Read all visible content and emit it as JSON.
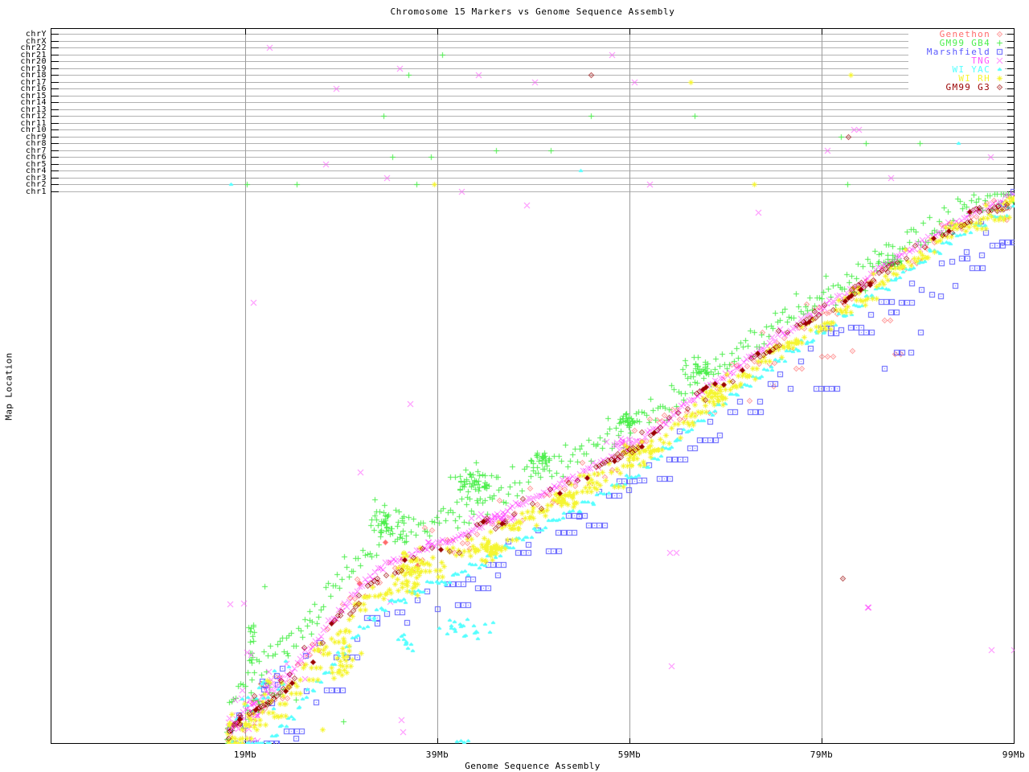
{
  "window": {
    "title": "Chromosome 15 Markers vs Genome Sequence Assembly"
  },
  "legend": {
    "items": [
      {
        "label": "Genethon",
        "color": "#ff6b6b",
        "marker": "diamond"
      },
      {
        "label": "GM99 GB4",
        "color": "#4cee4c",
        "marker": "plus"
      },
      {
        "label": "Marshfield",
        "color": "#5a5aff",
        "marker": "boxdot"
      },
      {
        "label": "TNG",
        "color": "#ff55ff",
        "marker": "cross"
      },
      {
        "label": "WI YAC",
        "color": "#55ffff",
        "marker": "triangle"
      },
      {
        "label": "WI RH",
        "color": "#f5f532",
        "marker": "star"
      },
      {
        "label": "GM99 G3",
        "color": "#990000",
        "marker": "diamond"
      }
    ]
  },
  "chart_data": {
    "type": "scatter",
    "title": "Chromosome 15 Markers vs Genome Sequence Assembly",
    "xlabel": "Genome Sequence Assembly",
    "ylabel": "Map Location",
    "x_range_mb": [
      -1.25,
      99.1
    ],
    "x_ticks": [
      {
        "mb": 19,
        "label": "19Mb"
      },
      {
        "mb": 39,
        "label": "39Mb"
      },
      {
        "mb": 59,
        "label": "59Mb"
      },
      {
        "mb": 79,
        "label": "79Mb"
      },
      {
        "mb": 99,
        "label": "99Mb"
      }
    ],
    "grid_color": "#b2b2b2",
    "vgrid_color": "#9c9c9c",
    "chromosome_rows": [
      "chrY",
      "chrX",
      "chr22",
      "chr21",
      "chr20",
      "chr19",
      "chr18",
      "chr17",
      "chr16",
      "chr15",
      "chr14",
      "chr13",
      "chr12",
      "chr11",
      "chr10",
      "chr9",
      "chr8",
      "chr7",
      "chr6",
      "chr5",
      "chr4",
      "chr3",
      "chr2",
      "chr1"
    ],
    "centerline": [
      [
        17.3,
        1.7
      ],
      [
        19.4,
        5.3
      ],
      [
        21.5,
        7.1
      ],
      [
        23.6,
        9.8
      ],
      [
        25.7,
        13.5
      ],
      [
        27.8,
        16.9
      ],
      [
        29.9,
        20.2
      ],
      [
        32,
        23.3
      ],
      [
        34.1,
        25.3
      ],
      [
        36.2,
        26.4
      ],
      [
        38.2,
        27.8
      ],
      [
        40.3,
        28.4
      ],
      [
        42.4,
        29.8
      ],
      [
        44.5,
        31.1
      ],
      [
        47,
        33.1
      ],
      [
        49.5,
        34.8
      ],
      [
        52.1,
        36.5
      ],
      [
        54.6,
        38.2
      ],
      [
        57.1,
        40.1
      ],
      [
        59.6,
        42.1
      ],
      [
        62.1,
        44.4
      ],
      [
        64.6,
        47.2
      ],
      [
        67.1,
        49.8
      ],
      [
        69.6,
        52
      ],
      [
        72.1,
        54.7
      ],
      [
        74.7,
        57.3
      ],
      [
        77.2,
        59.2
      ],
      [
        79.7,
        61.5
      ],
      [
        82.2,
        63.5
      ],
      [
        84.7,
        66
      ],
      [
        87.2,
        68.2
      ],
      [
        89.7,
        70.2
      ],
      [
        92.2,
        72.5
      ],
      [
        94.7,
        74.2
      ],
      [
        97.2,
        75.8
      ],
      [
        99.1,
        76.7
      ]
    ],
    "series": [
      {
        "name": "genethon",
        "label": "Genethon",
        "color": "#ff6b6b",
        "marker": "diamond",
        "seed": 101,
        "band": {
          "range": [
            17.4,
            99.0
          ],
          "step": 0.78,
          "off": [
            -0.5,
            -0.4
          ],
          "jitter": 2.3,
          "style": "pairs"
        },
        "blob_n": 12,
        "clusters": [],
        "outliers": [
          [
            79.0,
            54.2
          ],
          [
            79.6,
            54.2
          ],
          [
            80.2,
            54.2
          ],
          [
            85.5,
            59.2
          ],
          [
            86.1,
            59.2
          ],
          [
            82.2,
            54.9
          ],
          [
            86.6,
            54.5
          ],
          [
            87.2,
            54.5
          ],
          [
            76.3,
            52.5
          ],
          [
            76.9,
            52.5
          ],
          [
            74.0,
            50.0
          ],
          [
            71.5,
            48.0
          ]
        ],
        "bold": [
          [
            30.9,
            22.5
          ],
          [
            33.6,
            28.2
          ],
          [
            68.8,
            50.2
          ],
          [
            36.9,
            25.0
          ]
        ],
        "chrom_outliers": []
      },
      {
        "name": "gm99-gb4",
        "label": "GM99 GB4",
        "color": "#4cee4c",
        "marker": "plus",
        "seed": 202,
        "band": {
          "range": [
            17.3,
            99.0
          ],
          "step": 0.24,
          "off": [
            4.6,
            0.7
          ],
          "jitter": 1.9,
          "style": "plain"
        },
        "blob_n": 30,
        "clusters": [
          [
            42.8,
            36.5,
            2.0,
            1.9,
            50
          ],
          [
            34.1,
            31.0,
            1.8,
            2.2,
            40
          ],
          [
            50.0,
            39.9,
            1.3,
            1.0,
            25
          ],
          [
            58.8,
            45.5,
            1.3,
            1.2,
            25
          ],
          [
            66.3,
            52.8,
            1.5,
            1.2,
            30
          ],
          [
            86.4,
            67.4,
            1.2,
            1.0,
            20
          ],
          [
            19.7,
            13.5,
            0.5,
            3.2,
            14
          ]
        ],
        "outliers": [
          [
            25.7,
            18.5
          ],
          [
            25.9,
            15.4
          ],
          [
            24.3,
            6.2
          ],
          [
            29.2,
            3.2
          ],
          [
            21.0,
            22.0
          ]
        ],
        "bold": [],
        "chrom_outliers": [
          [
            "chr21",
            39.5
          ],
          [
            "chr18",
            36.0
          ],
          [
            "chr12",
            33.4
          ],
          [
            "chr12",
            55.0
          ],
          [
            "chr12",
            65.8
          ],
          [
            "chr7",
            45.1
          ],
          [
            "chr7",
            50.8
          ],
          [
            "chr6",
            34.3
          ],
          [
            "chr6",
            38.3
          ],
          [
            "chr2",
            19.2
          ],
          [
            "chr2",
            24.4
          ],
          [
            "chr2",
            36.8
          ],
          [
            "chr2",
            81.7
          ],
          [
            "chr8",
            83.6
          ],
          [
            "chr8",
            89.2
          ],
          [
            "chr9",
            81.0
          ]
        ]
      },
      {
        "name": "marshfield",
        "label": "Marshfield",
        "color": "#5a5aff",
        "marker": "boxdot",
        "seed": 303,
        "band": {
          "range": [
            18.0,
            98.6
          ],
          "step": 1.05,
          "off": [
            -8.2,
            -4.6
          ],
          "jitter": 2.2,
          "style": "hrun"
        },
        "blob_n": 10,
        "clusters": [],
        "outliers": [
          [
            26.7,
            14.2
          ],
          [
            25.3,
            12.4
          ],
          [
            78.4,
            49.7
          ],
          [
            78.9,
            49.7
          ],
          [
            79.5,
            49.7
          ],
          [
            80.0,
            49.7
          ],
          [
            80.6,
            49.7
          ],
          [
            86.8,
            54.7
          ],
          [
            87.4,
            54.7
          ],
          [
            88.3,
            54.7
          ],
          [
            85.5,
            52.5
          ],
          [
            91.4,
            62.6
          ],
          [
            94.1,
            68.8
          ],
          [
            96.1,
            71.5
          ],
          [
            92.9,
            64.0
          ],
          [
            95.6,
            73.0
          ],
          [
            97.9,
            75.5
          ],
          [
            89.3,
            57.5
          ]
        ],
        "bold": [],
        "chrom_outliers": [
          [
            "chr1",
            98.9
          ]
        ]
      },
      {
        "name": "tng",
        "label": "TNG",
        "color": "#ff55ff",
        "marker": "cross",
        "seed": 404,
        "band": {
          "range": [
            17.4,
            99.0
          ],
          "step": 0.27,
          "off": [
            0,
            0
          ],
          "jitter": 0.45,
          "style": "plain"
        },
        "blob_n": 24,
        "clusters": [
          [
            20.0,
            3.0,
            0.7,
            2.2,
            12
          ],
          [
            44.8,
            31.5,
            1.8,
            0.5,
            22
          ],
          [
            58.5,
            42.3,
            1.5,
            0.4,
            14
          ]
        ],
        "outliers": [
          [
            19.8,
            61.7
          ],
          [
            48.3,
            75.3
          ],
          [
            72.4,
            74.3
          ],
          [
            63.2,
            26.7
          ],
          [
            63.9,
            26.7
          ],
          [
            63.4,
            10.9
          ],
          [
            83.8,
            19.1
          ],
          [
            96.7,
            13.1
          ],
          [
            99.0,
            13.1
          ],
          [
            17.4,
            19.6
          ],
          [
            18.8,
            19.7
          ],
          [
            19.2,
            12.8
          ],
          [
            19.6,
            12.5
          ],
          [
            24.9,
            11.7
          ],
          [
            25.2,
            9.1
          ],
          [
            34.1,
            19.9
          ],
          [
            35.2,
            3.4
          ],
          [
            35.4,
            1.7
          ],
          [
            20.3,
            0.4
          ],
          [
            36.2,
            47.5
          ],
          [
            31.0,
            38.0
          ]
        ],
        "bold": [
          [
            83.8,
            19.1
          ],
          [
            38.0,
            28.2
          ]
        ],
        "chrom_outliers": [
          [
            "chr22",
            21.5
          ],
          [
            "chr21",
            57.2
          ],
          [
            "chr19",
            35.1
          ],
          [
            "chr18",
            43.3
          ],
          [
            "chr17",
            49.1
          ],
          [
            "chr17",
            59.5
          ],
          [
            "chr16",
            28.5
          ],
          [
            "chr10",
            82.4
          ],
          [
            "chr10",
            82.9
          ],
          [
            "chr7",
            79.6
          ],
          [
            "chr6",
            96.6
          ],
          [
            "chr5",
            27.4
          ],
          [
            "chr3",
            33.7
          ],
          [
            "chr3",
            86.2
          ],
          [
            "chr2",
            61.1
          ],
          [
            "chr1",
            41.5
          ]
        ]
      },
      {
        "name": "wi-yac",
        "label": "WI YAC",
        "color": "#55ffff",
        "marker": "triangle",
        "seed": 505,
        "band": {
          "range": [
            17.5,
            99.0
          ],
          "step": 0.3,
          "off": [
            -6.8,
            -1.9
          ],
          "jitter": 0.7,
          "style": "stair"
        },
        "blob_n": 20,
        "clusters": [
          [
            42.0,
            16.0,
            2.3,
            1.7,
            22
          ],
          [
            35.8,
            14.0,
            1.1,
            0.9,
            10
          ]
        ],
        "outliers": [
          [
            41.0,
            0.3
          ],
          [
            41.4,
            0.5
          ],
          [
            41.8,
            0.2
          ],
          [
            42.2,
            0.4
          ]
        ],
        "bold": [],
        "chrom_outliers": [
          [
            "chr2",
            17.5
          ],
          [
            "chr4",
            53.9
          ],
          [
            "chr8",
            93.2
          ]
        ]
      },
      {
        "name": "wi-rh",
        "label": "WI RH",
        "color": "#f5f532",
        "marker": "star",
        "seed": 606,
        "band": {
          "range": [
            17.5,
            99.0
          ],
          "step": 0.3,
          "off": [
            -2.9,
            -1.3
          ],
          "jitter": 1.5,
          "style": "hshort"
        },
        "blob_n": 22,
        "clusters": [
          [
            36.3,
            23.6,
            1.2,
            2.6,
            40
          ],
          [
            44.5,
            27.0,
            1.4,
            1.4,
            25
          ],
          [
            52.5,
            34.3,
            1.4,
            1.2,
            22
          ],
          [
            60.0,
            41.0,
            1.4,
            1.2,
            22
          ],
          [
            68.0,
            48.9,
            1.4,
            1.2,
            22
          ],
          [
            29.5,
            11.5,
            1.2,
            2.2,
            25
          ]
        ],
        "outliers": [
          [
            27.0,
            2.0
          ]
        ],
        "bold": [],
        "chrom_outliers": [
          [
            "chr17",
            65.4
          ],
          [
            "chr18",
            82.0
          ],
          [
            "chr2",
            72.0
          ],
          [
            "chr2",
            38.7
          ]
        ]
      },
      {
        "name": "gm99-g3",
        "label": "GM99 G3",
        "color": "#990000",
        "marker": "diamond",
        "seed": 707,
        "band": {
          "range": [
            17.5,
            99.0
          ],
          "step": 0.95,
          "off": [
            -0.8,
            -0.3
          ],
          "jitter": 1.3,
          "style": "diag"
        },
        "blob_n": 10,
        "clusters": [],
        "outliers": [
          [
            81.2,
            23.1
          ]
        ],
        "bold": [],
        "chrom_outliers": [
          [
            "chr18",
            55.0
          ],
          [
            "chr9",
            81.8
          ]
        ]
      }
    ]
  }
}
